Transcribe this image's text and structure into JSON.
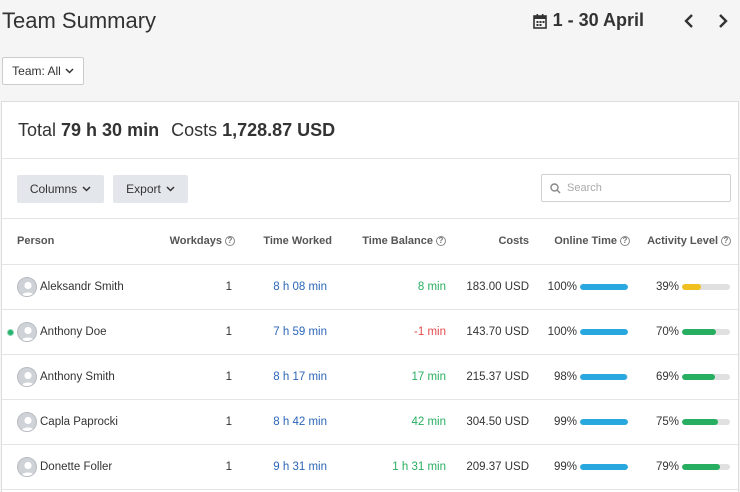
{
  "header": {
    "title": "Team Summary",
    "date_range": "1 - 30 April"
  },
  "filter": {
    "team_label": "Team: All"
  },
  "summary": {
    "total_label": "Total",
    "total_value": "79 h 30 min",
    "costs_label": "Costs",
    "costs_value": "1,728.87 USD"
  },
  "toolbar": {
    "columns_label": "Columns",
    "export_label": "Export",
    "search_placeholder": "Search"
  },
  "columns": {
    "person": "Person",
    "workdays": "Workdays",
    "time_worked": "Time Worked",
    "time_balance": "Time Balance",
    "costs": "Costs",
    "online_time": "Online Time",
    "activity_level": "Activity Level"
  },
  "colors": {
    "online_bar": "#29a8e0",
    "activity_low": "#f0c020",
    "activity_good": "#27ae60"
  },
  "rows": [
    {
      "name": "Aleksandr Smith",
      "workdays": "1",
      "time_worked": "8 h 08 min",
      "time_balance": "8 min",
      "balance_negative": false,
      "costs": "183.00 USD",
      "online_time": "100%",
      "online_value": 100,
      "activity": "39%",
      "activity_value": 39,
      "online_now": false
    },
    {
      "name": "Anthony Doe",
      "workdays": "1",
      "time_worked": "7 h 59 min",
      "time_balance": "-1 min",
      "balance_negative": true,
      "costs": "143.70 USD",
      "online_time": "100%",
      "online_value": 100,
      "activity": "70%",
      "activity_value": 70,
      "online_now": true
    },
    {
      "name": "Anthony Smith",
      "workdays": "1",
      "time_worked": "8 h 17 min",
      "time_balance": "17 min",
      "balance_negative": false,
      "costs": "215.37 USD",
      "online_time": "98%",
      "online_value": 98,
      "activity": "69%",
      "activity_value": 69,
      "online_now": false
    },
    {
      "name": "Capla Paprocki",
      "workdays": "1",
      "time_worked": "8 h 42 min",
      "time_balance": "42 min",
      "balance_negative": false,
      "costs": "304.50 USD",
      "online_time": "99%",
      "online_value": 99,
      "activity": "75%",
      "activity_value": 75,
      "online_now": false
    },
    {
      "name": "Donette Foller",
      "workdays": "1",
      "time_worked": "9 h 31 min",
      "time_balance": "1 h 31 min",
      "balance_negative": false,
      "costs": "209.37 USD",
      "online_time": "99%",
      "online_value": 99,
      "activity": "79%",
      "activity_value": 79,
      "online_now": false
    }
  ]
}
